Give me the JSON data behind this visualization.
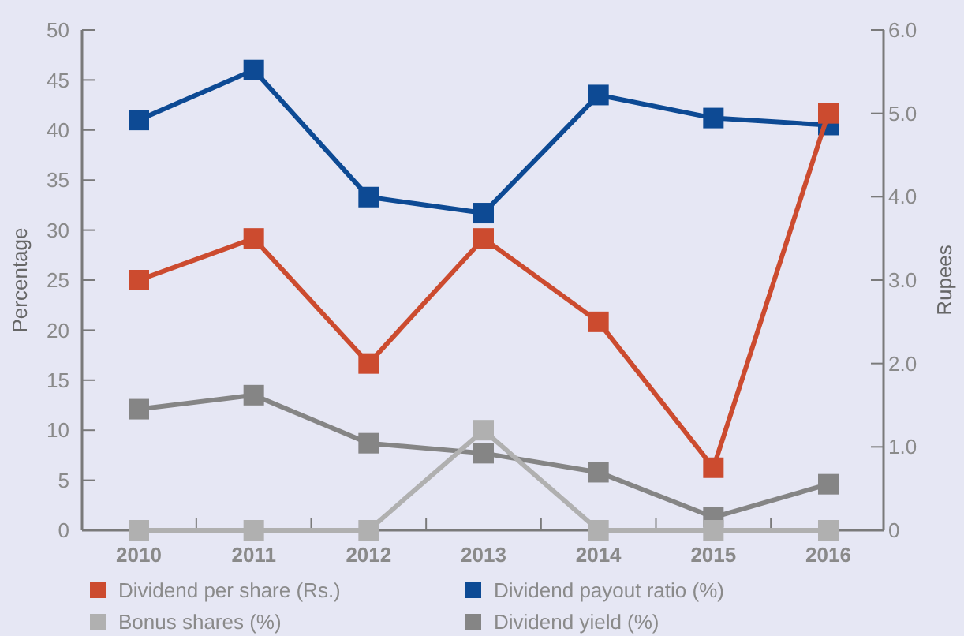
{
  "chart_data": {
    "type": "line",
    "ylabel": "Percentage",
    "y2label": "Rupees",
    "categories": [
      "2010",
      "2011",
      "2012",
      "2013",
      "2014",
      "2015",
      "2016"
    ],
    "ylim": [
      0,
      50
    ],
    "yticks": [
      0,
      5,
      10,
      15,
      20,
      25,
      30,
      35,
      40,
      45,
      50
    ],
    "y2lim": [
      0,
      6
    ],
    "y2ticks": [
      0,
      {
        "value": 1,
        "label": "1.0"
      },
      {
        "value": 2,
        "label": "2.0"
      },
      {
        "value": 3,
        "label": "3.0"
      },
      {
        "value": 4,
        "label": "4.0"
      },
      {
        "value": 5,
        "label": "5.0"
      },
      {
        "value": 6,
        "label": "6.0"
      }
    ],
    "marker": "square",
    "grid": false,
    "legend": "bottom",
    "series": [
      {
        "name": "Dividend per share (Rs.)",
        "color": "#cc4b2f",
        "axis": "y2",
        "values": [
          3.0,
          3.5,
          2.0,
          3.5,
          2.5,
          0.75,
          5.0
        ]
      },
      {
        "name": "Dividend payout ratio (%)",
        "color": "#0d4a94",
        "values": [
          41,
          46,
          33.3,
          31.7,
          43.5,
          41.2,
          40.5
        ]
      },
      {
        "name": "Bonus shares (%)",
        "color": "#b0b0b0",
        "values": [
          0,
          0,
          0,
          10,
          0,
          0,
          0
        ]
      },
      {
        "name": "Dividend yield (%)",
        "color": "#858585",
        "values": [
          12.1,
          13.5,
          8.7,
          7.7,
          5.8,
          1.3,
          4.6
        ]
      }
    ]
  }
}
